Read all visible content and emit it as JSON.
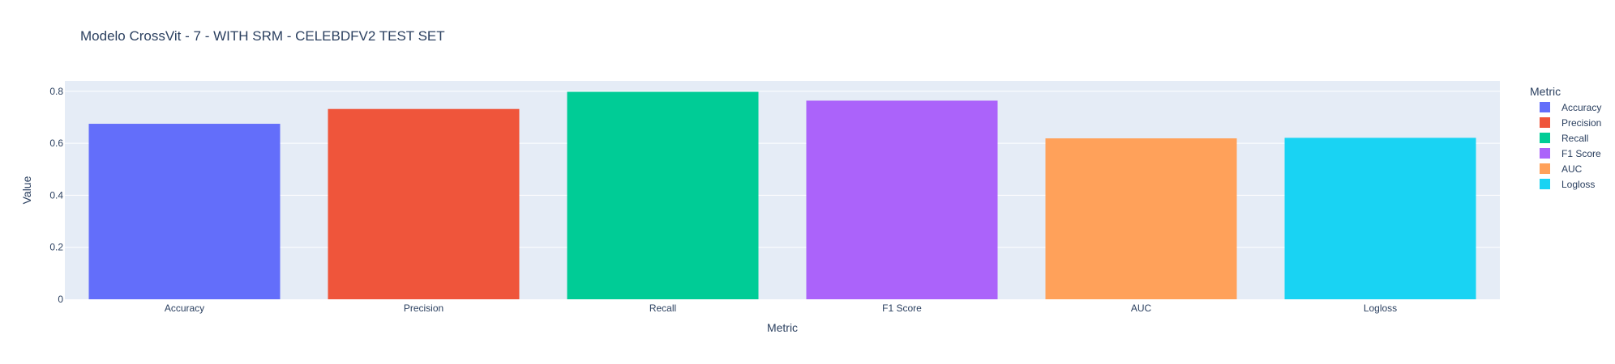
{
  "chart_data": {
    "type": "bar",
    "title": "Modelo CrossVit - 7 - WITH SRM - CELEBDFV2 TEST SET",
    "xlabel": "Metric",
    "ylabel": "Value",
    "ylim": [
      0,
      0.84
    ],
    "yticks": [
      0,
      0.2,
      0.4,
      0.6,
      0.8
    ],
    "ytick_labels": [
      "0",
      "0.2",
      "0.4",
      "0.6",
      "0.8"
    ],
    "grid": true,
    "legend_title": "Metric",
    "legend_position": "top-right",
    "categories": [
      "Accuracy",
      "Precision",
      "Recall",
      "F1 Score",
      "AUC",
      "Logloss"
    ],
    "values": [
      0.675,
      0.732,
      0.798,
      0.764,
      0.619,
      0.621
    ],
    "colors": [
      "#636efa",
      "#ef553b",
      "#00cc96",
      "#ab63fa",
      "#ffa15a",
      "#19d3f3"
    ]
  }
}
